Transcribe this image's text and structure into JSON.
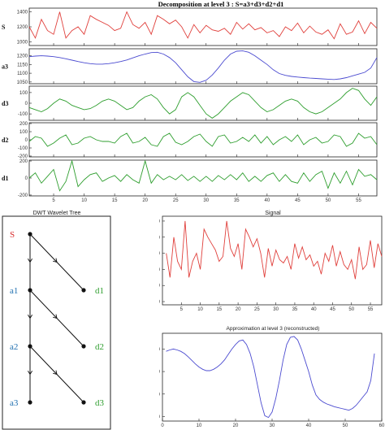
{
  "decomposition": {
    "title": "Decomposition at level 3 : S=a3+d3+d2+d1",
    "x_ticks": [
      "5",
      "10",
      "15",
      "20",
      "25",
      "30",
      "35",
      "40",
      "45",
      "50",
      "55"
    ],
    "x_tick_values": [
      5,
      10,
      15,
      20,
      25,
      30,
      35,
      40,
      45,
      50,
      55
    ],
    "xlim": [
      1,
      58
    ],
    "panels": [
      {
        "label": "S",
        "color": "#e0403c",
        "ylim": [
          950,
          1450
        ],
        "yticks": [
          "1400",
          "1200",
          "1000"
        ],
        "ytick_values": [
          1400,
          1200,
          1000
        ]
      },
      {
        "label": "a3",
        "color": "#4b4bd0",
        "ylim": [
          1040,
          1240
        ],
        "yticks": [
          "1200",
          "1150",
          "1100",
          "1050"
        ],
        "ytick_values": [
          1200,
          1150,
          1100,
          1050
        ]
      },
      {
        "label": "d3",
        "color": "#2e9e2e",
        "ylim": [
          -160,
          160
        ],
        "yticks": [
          "100",
          "0",
          "-100"
        ],
        "ytick_values": [
          100,
          0,
          -100
        ]
      },
      {
        "label": "d2",
        "color": "#2e9e2e",
        "ylim": [
          -210,
          210
        ],
        "yticks": [
          "200",
          "100",
          "0",
          "-100",
          "-200"
        ],
        "ytick_values": [
          200,
          100,
          0,
          -100,
          -200
        ]
      },
      {
        "label": "d1",
        "color": "#2e9e2e",
        "ylim": [
          -210,
          210
        ],
        "yticks": [
          "200",
          "0",
          "-200"
        ],
        "ytick_values": [
          200,
          0,
          -200
        ]
      }
    ]
  },
  "tree": {
    "title": "DWT  Wavelet Tree",
    "nodes": [
      {
        "label": "S",
        "color": "#d93030"
      },
      {
        "label": "a1",
        "color": "#1f6fb0"
      },
      {
        "label": "d1",
        "color": "#2e9e2e"
      },
      {
        "label": "a2",
        "color": "#1f6fb0"
      },
      {
        "label": "d2",
        "color": "#2e9e2e"
      },
      {
        "label": "a3",
        "color": "#1f6fb0"
      },
      {
        "label": "d3",
        "color": "#2e9e2e"
      }
    ]
  },
  "signal_plot": {
    "title": "Signal",
    "color": "#e0403c",
    "xlim": [
      0,
      58
    ],
    "ylim": [
      880,
      1430
    ],
    "xticks": [
      "5",
      "10",
      "15",
      "20",
      "25",
      "30",
      "35",
      "40",
      "45",
      "50",
      "55"
    ],
    "xtick_values": [
      5,
      10,
      15,
      20,
      25,
      30,
      35,
      40,
      45,
      50,
      55
    ],
    "yticks": [
      "1400",
      "1300",
      "1200",
      "1100",
      "1000",
      "900"
    ],
    "ytick_values": [
      1400,
      1300,
      1200,
      1100,
      1000,
      900
    ]
  },
  "approx_plot": {
    "title": "Approximation at level 3 (reconstructed)",
    "color": "#4b4bd0",
    "xlim": [
      0,
      60
    ],
    "ylim": [
      1040,
      1235
    ],
    "xticks": [
      "0",
      "10",
      "20",
      "30",
      "40",
      "50",
      "60"
    ],
    "xtick_values": [
      0,
      10,
      20,
      30,
      40,
      50,
      60
    ],
    "yticks": [
      "1200",
      "1150",
      "1100",
      "1050"
    ],
    "ytick_values": [
      1200,
      1150,
      1100,
      1050
    ]
  },
  "chart_data": [
    {
      "type": "line",
      "title": "Decomposition at level 3 : S=a3+d3+d2+d1",
      "x": [
        1,
        2,
        3,
        4,
        5,
        6,
        7,
        8,
        9,
        10,
        11,
        12,
        13,
        14,
        15,
        16,
        17,
        18,
        19,
        20,
        21,
        22,
        23,
        24,
        25,
        26,
        27,
        28,
        29,
        30,
        31,
        32,
        33,
        34,
        35,
        36,
        37,
        38,
        39,
        40,
        41,
        42,
        43,
        44,
        45,
        46,
        47,
        48,
        49,
        50,
        51,
        52,
        53,
        54,
        55,
        56,
        57,
        58
      ],
      "series": [
        {
          "name": "S",
          "values": [
            1200,
            1050,
            1300,
            1150,
            1100,
            1400,
            1050,
            1150,
            1200,
            1100,
            1350,
            1300,
            1260,
            1220,
            1150,
            1180,
            1400,
            1230,
            1180,
            1260,
            1100,
            1350,
            1300,
            1240,
            1290,
            1200,
            1050,
            1230,
            1120,
            1220,
            1160,
            1140,
            1180,
            1100,
            1260,
            1170,
            1240,
            1160,
            1190,
            1120,
            1150,
            1070,
            1200,
            1150,
            1250,
            1120,
            1210,
            1130,
            1100,
            1160,
            1040,
            1240,
            1100,
            1130,
            1280,
            1110,
            1260,
            1180
          ]
        },
        {
          "name": "a3",
          "values": [
            1195,
            1198,
            1200,
            1198,
            1195,
            1190,
            1183,
            1175,
            1167,
            1160,
            1155,
            1152,
            1152,
            1155,
            1160,
            1167,
            1176,
            1188,
            1200,
            1210,
            1218,
            1220,
            1210,
            1190,
            1160,
            1120,
            1080,
            1052,
            1048,
            1060,
            1090,
            1130,
            1175,
            1210,
            1226,
            1228,
            1220,
            1200,
            1175,
            1150,
            1120,
            1098,
            1088,
            1082,
            1078,
            1075,
            1072,
            1070,
            1068,
            1066,
            1064,
            1068,
            1075,
            1085,
            1095,
            1105,
            1130,
            1190
          ]
        },
        {
          "name": "d3",
          "values": [
            -40,
            -60,
            -80,
            -50,
            0,
            40,
            20,
            -20,
            -40,
            -60,
            -50,
            -20,
            20,
            40,
            20,
            -20,
            -60,
            -40,
            20,
            60,
            80,
            40,
            -40,
            -100,
            -60,
            60,
            100,
            60,
            -20,
            -100,
            -140,
            -100,
            -40,
            20,
            60,
            100,
            80,
            20,
            -40,
            -80,
            -60,
            -20,
            20,
            40,
            20,
            -40,
            -80,
            -100,
            -80,
            -40,
            0,
            40,
            100,
            140,
            120,
            40,
            -20,
            60
          ]
        },
        {
          "name": "d2",
          "values": [
            -20,
            40,
            20,
            -80,
            -40,
            20,
            60,
            -60,
            -40,
            20,
            40,
            0,
            -20,
            -20,
            -40,
            40,
            80,
            -40,
            -20,
            30,
            -60,
            -80,
            40,
            80,
            -30,
            -60,
            -20,
            40,
            70,
            -20,
            -80,
            40,
            60,
            -40,
            -20,
            30,
            -20,
            60,
            -40,
            40,
            -60,
            0,
            40,
            -20,
            60,
            -60,
            0,
            30,
            -40,
            -20,
            60,
            40,
            -80,
            -40,
            80,
            20,
            40,
            -60
          ]
        },
        {
          "name": "d1",
          "values": [
            0,
            60,
            -60,
            20,
            100,
            -150,
            -40,
            200,
            -100,
            -20,
            40,
            60,
            -40,
            0,
            30,
            -40,
            40,
            -20,
            -60,
            200,
            -60,
            40,
            -20,
            20,
            -20,
            40,
            -30,
            20,
            -40,
            20,
            -40,
            30,
            -20,
            40,
            -20,
            60,
            -40,
            20,
            -40,
            30,
            60,
            -40,
            40,
            -40,
            -60,
            60,
            -40,
            40,
            80,
            -120,
            60,
            -60,
            80,
            -80,
            100,
            20,
            40,
            -20
          ]
        }
      ],
      "xlim": [
        1,
        58
      ],
      "x_ticks": [
        5,
        10,
        15,
        20,
        25,
        30,
        35,
        40,
        45,
        50,
        55
      ]
    },
    {
      "type": "line",
      "title": "Signal",
      "x": [
        1,
        2,
        3,
        4,
        5,
        6,
        7,
        8,
        9,
        10,
        11,
        12,
        13,
        14,
        15,
        16,
        17,
        18,
        19,
        20,
        21,
        22,
        23,
        24,
        25,
        26,
        27,
        28,
        29,
        30,
        31,
        32,
        33,
        34,
        35,
        36,
        37,
        38,
        39,
        40,
        41,
        42,
        43,
        44,
        45,
        46,
        47,
        48,
        49,
        50,
        51,
        52,
        53,
        54,
        55,
        56,
        57,
        58
      ],
      "series": [
        {
          "name": "Signal",
          "values": [
            1200,
            1050,
            1300,
            1150,
            1100,
            1400,
            1050,
            1150,
            1200,
            1100,
            1350,
            1300,
            1260,
            1220,
            1150,
            1180,
            1400,
            1230,
            1180,
            1260,
            1100,
            1350,
            1300,
            1240,
            1290,
            1200,
            1050,
            1230,
            1120,
            1220,
            1160,
            1140,
            1180,
            1100,
            1260,
            1170,
            1240,
            1160,
            1190,
            1120,
            1150,
            1070,
            1200,
            1150,
            1250,
            1120,
            1210,
            1130,
            1100,
            1160,
            1040,
            1240,
            1100,
            1130,
            1280,
            1110,
            1260,
            1180
          ]
        }
      ],
      "xlim": [
        0,
        58
      ],
      "ylim": [
        880,
        1430
      ]
    },
    {
      "type": "line",
      "title": "Approximation at level 3 (reconstructed)",
      "x": [
        1,
        2,
        3,
        4,
        5,
        6,
        7,
        8,
        9,
        10,
        11,
        12,
        13,
        14,
        15,
        16,
        17,
        18,
        19,
        20,
        21,
        22,
        23,
        24,
        25,
        26,
        27,
        28,
        29,
        30,
        31,
        32,
        33,
        34,
        35,
        36,
        37,
        38,
        39,
        40,
        41,
        42,
        43,
        44,
        45,
        46,
        47,
        48,
        49,
        50,
        51,
        52,
        53,
        54,
        55,
        56,
        57,
        58
      ],
      "series": [
        {
          "name": "a3",
          "values": [
            1195,
            1198,
            1200,
            1198,
            1195,
            1190,
            1183,
            1175,
            1167,
            1160,
            1155,
            1152,
            1152,
            1155,
            1160,
            1167,
            1176,
            1188,
            1200,
            1210,
            1218,
            1220,
            1210,
            1190,
            1160,
            1120,
            1080,
            1052,
            1048,
            1060,
            1090,
            1130,
            1175,
            1210,
            1226,
            1228,
            1220,
            1200,
            1175,
            1150,
            1120,
            1098,
            1088,
            1082,
            1078,
            1075,
            1072,
            1070,
            1068,
            1066,
            1064,
            1068,
            1075,
            1085,
            1095,
            1105,
            1130,
            1190
          ]
        }
      ],
      "xlim": [
        0,
        60
      ],
      "ylim": [
        1040,
        1235
      ]
    }
  ]
}
